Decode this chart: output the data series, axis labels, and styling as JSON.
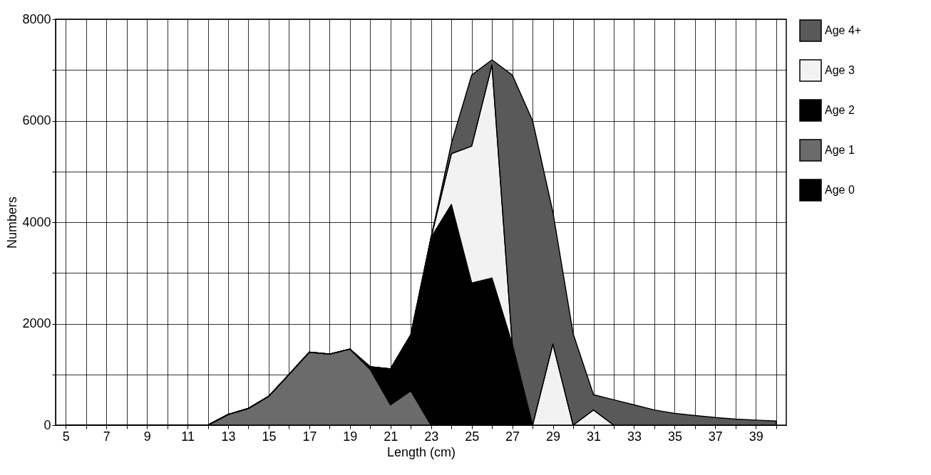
{
  "chart_data": {
    "type": "area",
    "stacked": true,
    "xlabel": "Length (cm)",
    "ylabel": "Numbers",
    "x": [
      5,
      6,
      7,
      8,
      9,
      10,
      11,
      12,
      13,
      14,
      15,
      16,
      17,
      18,
      19,
      20,
      21,
      22,
      23,
      24,
      25,
      26,
      27,
      28,
      29,
      30,
      31,
      32,
      33,
      34,
      35,
      36,
      37,
      38,
      39,
      40
    ],
    "series": [
      {
        "name": "Age 0",
        "color": "#000000",
        "values": [
          null,
          null,
          null,
          null,
          null,
          null,
          null,
          null,
          null,
          null,
          null,
          null,
          null,
          null,
          null,
          null,
          null,
          null,
          null,
          null,
          null,
          null,
          null,
          null,
          null,
          null,
          null,
          null,
          null,
          null,
          null,
          null,
          null,
          null,
          null,
          null
        ]
      },
      {
        "name": "Age 1",
        "color": "#6b6b6b",
        "values": [
          0,
          0,
          0,
          0,
          0,
          0,
          0,
          0,
          210,
          330,
          570,
          1000,
          1440,
          1400,
          1500,
          1100,
          400,
          680,
          0,
          0,
          0,
          0,
          0,
          0,
          0,
          0,
          0,
          0,
          0,
          0,
          0,
          0,
          0,
          0,
          0,
          0
        ]
      },
      {
        "name": "Age 2",
        "color": "#000000",
        "values": [
          0,
          0,
          0,
          0,
          0,
          0,
          0,
          0,
          0,
          0,
          0,
          0,
          0,
          0,
          0,
          50,
          710,
          1100,
          3700,
          4350,
          2800,
          2900,
          1600,
          0,
          0,
          0,
          0,
          0,
          0,
          0,
          0,
          0,
          0,
          0,
          0,
          0
        ]
      },
      {
        "name": "Age 3",
        "color": "#f2f2f2",
        "values": [
          0,
          0,
          0,
          0,
          0,
          0,
          0,
          0,
          0,
          0,
          0,
          0,
          0,
          0,
          0,
          0,
          0,
          0,
          0,
          1000,
          2700,
          4200,
          0,
          0,
          1600,
          0,
          300,
          0,
          0,
          0,
          0,
          0,
          0,
          0,
          0,
          0
        ]
      },
      {
        "name": "Age 4+",
        "color": "#595959",
        "values": [
          0,
          0,
          0,
          0,
          0,
          0,
          0,
          0,
          0,
          0,
          0,
          0,
          0,
          0,
          0,
          0,
          0,
          0,
          0,
          200,
          1400,
          100,
          5300,
          6000,
          2600,
          1800,
          300,
          500,
          400,
          300,
          230,
          190,
          150,
          120,
          100,
          80
        ]
      }
    ],
    "xlim": [
      4.5,
      40.5
    ],
    "xticks": [
      5,
      {
        "value": 6,
        "label": null
      },
      7,
      {
        "value": 8,
        "label": null
      },
      9,
      {
        "value": 10,
        "label": null
      },
      11,
      {
        "value": 12,
        "label": null
      },
      13,
      {
        "value": 14,
        "label": null
      },
      15,
      {
        "value": 16,
        "label": null
      },
      17,
      {
        "value": 18,
        "label": null
      },
      19,
      {
        "value": 20,
        "label": null
      },
      21,
      {
        "value": 22,
        "label": null
      },
      23,
      {
        "value": 24,
        "label": null
      },
      25,
      {
        "value": 26,
        "label": null
      },
      27,
      {
        "value": 28,
        "label": null
      },
      29,
      {
        "value": 30,
        "label": null
      },
      31,
      {
        "value": 32,
        "label": null
      },
      33,
      {
        "value": 34,
        "label": null
      },
      35,
      {
        "value": 36,
        "label": null
      },
      37,
      {
        "value": 38,
        "label": null
      },
      39,
      {
        "value": 40,
        "label": null
      }
    ],
    "ylim": [
      0,
      8000
    ],
    "yticks": [
      0,
      {
        "value": 1000,
        "label": null
      },
      2000,
      {
        "value": 3000,
        "label": null
      },
      4000,
      {
        "value": 5000,
        "label": null
      },
      6000,
      {
        "value": 7000,
        "label": null
      },
      8000
    ],
    "grid": true,
    "legend": "right"
  }
}
